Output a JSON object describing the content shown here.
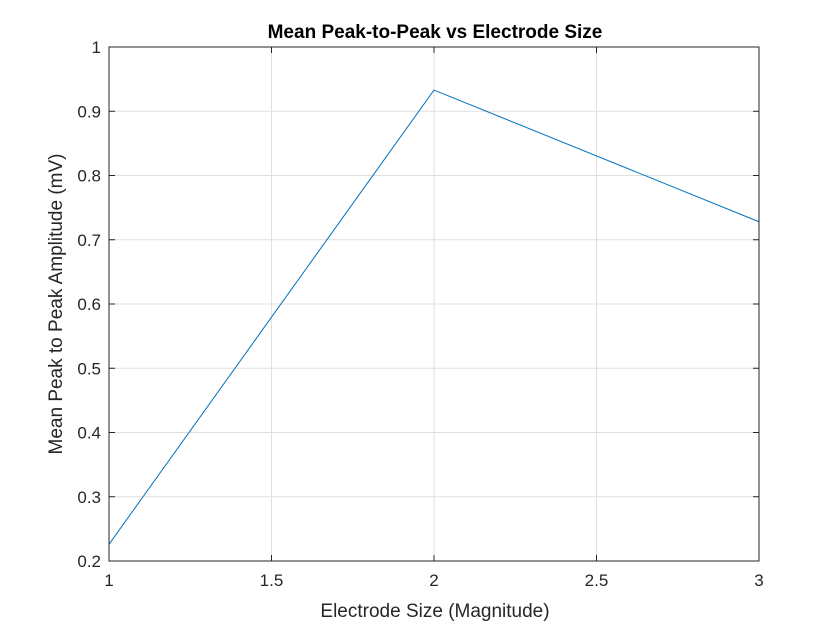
{
  "chart_data": {
    "type": "line",
    "title": "Mean Peak-to-Peak vs Electrode Size",
    "xlabel": "Electrode Size (Magnitude)",
    "ylabel": "Mean Peak to Peak Amplitude (mV)",
    "xlim": [
      1,
      3
    ],
    "ylim": [
      0.2,
      1
    ],
    "xticks": [
      1,
      1.5,
      2,
      2.5,
      3
    ],
    "xtick_labels": [
      "1",
      "1.5",
      "2",
      "2.5",
      "3"
    ],
    "yticks": [
      0.2,
      0.3,
      0.4,
      0.5,
      0.6,
      0.7,
      0.8,
      0.9,
      1
    ],
    "ytick_labels": [
      "0.2",
      "0.3",
      "0.4",
      "0.5",
      "0.6",
      "0.7",
      "0.8",
      "0.9",
      "1"
    ],
    "grid": true,
    "series": [
      {
        "x": [
          1,
          2,
          3
        ],
        "y": [
          0.226,
          0.933,
          0.728
        ],
        "color": "#0072BD"
      }
    ]
  }
}
